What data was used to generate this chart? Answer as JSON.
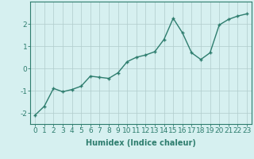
{
  "x": [
    0,
    1,
    2,
    3,
    4,
    5,
    6,
    7,
    8,
    9,
    10,
    11,
    12,
    13,
    14,
    15,
    16,
    17,
    18,
    19,
    20,
    21,
    22,
    23
  ],
  "y": [
    -2.1,
    -1.7,
    -0.9,
    -1.05,
    -0.95,
    -0.8,
    -0.35,
    -0.4,
    -0.45,
    -0.2,
    0.3,
    0.5,
    0.6,
    0.75,
    1.3,
    2.25,
    1.6,
    0.7,
    0.4,
    0.7,
    1.95,
    2.2,
    2.35,
    2.45
  ],
  "line_color": "#2e7d6e",
  "marker": "+",
  "marker_size": 3,
  "marker_edge_width": 1.0,
  "line_width": 1.0,
  "background_color": "#d6f0f0",
  "grid_color": "#b0cccc",
  "xlabel": "Humidex (Indice chaleur)",
  "xlabel_fontsize": 7,
  "tick_label_fontsize": 6.5,
  "ylim": [
    -2.5,
    3.0
  ],
  "xlim": [
    -0.5,
    23.5
  ],
  "yticks": [
    -2,
    -1,
    0,
    1,
    2
  ],
  "xticks": [
    0,
    1,
    2,
    3,
    4,
    5,
    6,
    7,
    8,
    9,
    10,
    11,
    12,
    13,
    14,
    15,
    16,
    17,
    18,
    19,
    20,
    21,
    22,
    23
  ],
  "figsize": [
    3.2,
    2.0
  ],
  "dpi": 100
}
